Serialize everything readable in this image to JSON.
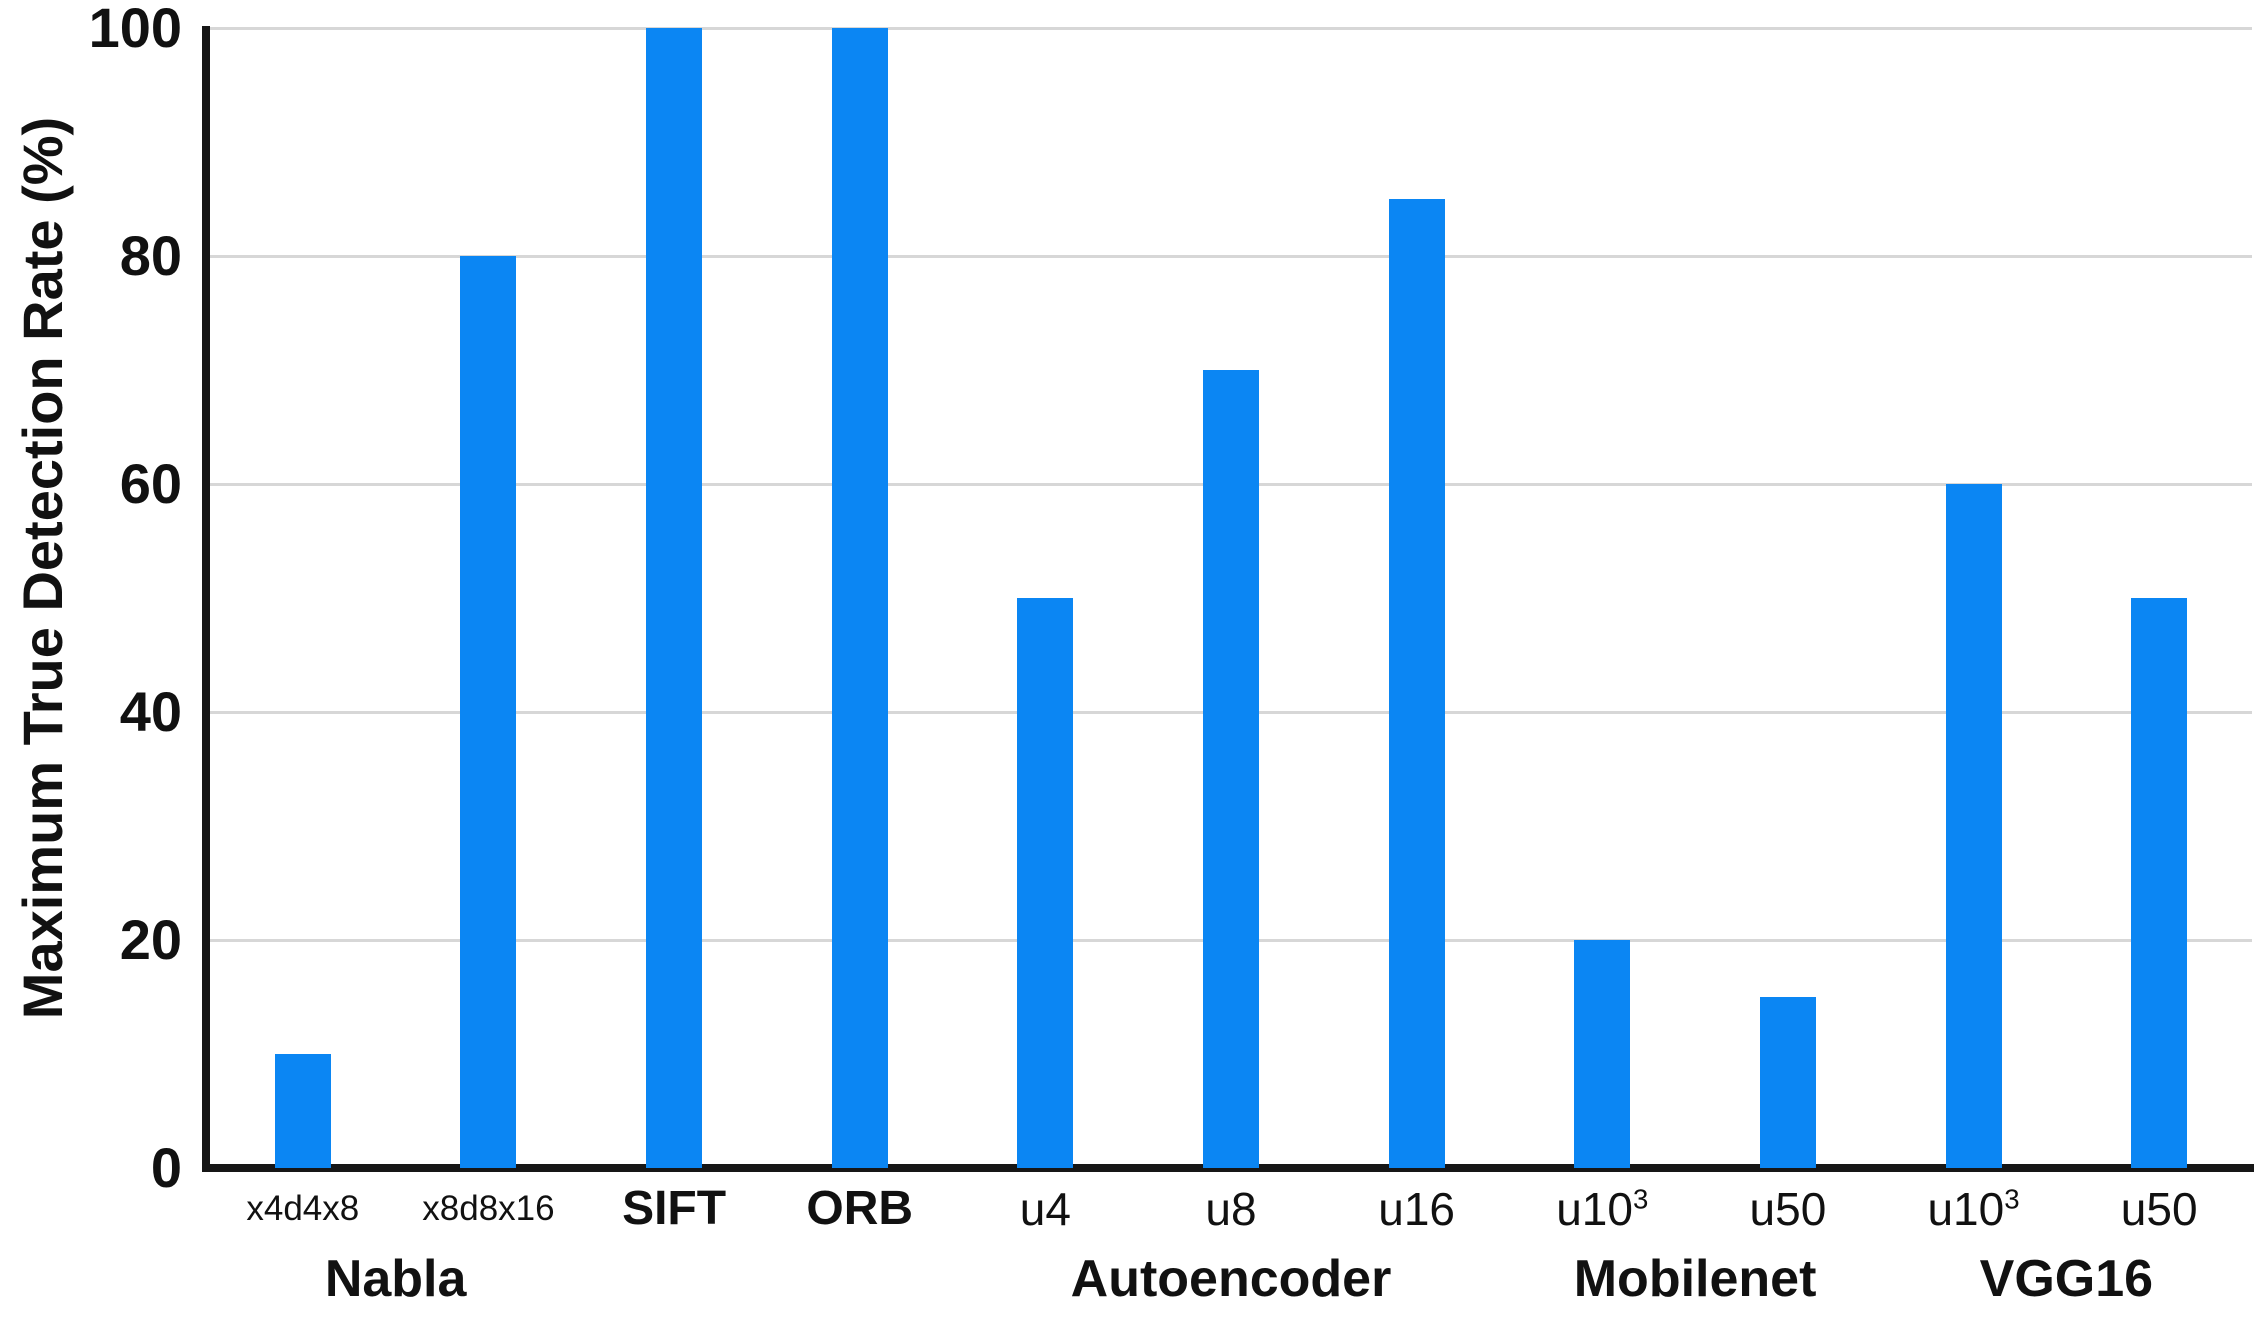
{
  "chart_data": {
    "type": "bar",
    "title": "",
    "xlabel": "",
    "ylabel": "Maximum True Detection Rate (%)",
    "ylim": [
      0,
      100
    ],
    "yticks": [
      0,
      20,
      40,
      60,
      80,
      100
    ],
    "grid": true,
    "legend": null,
    "bar_color": "#0b86f3",
    "gridline_color": "#d7d7d7",
    "axis_color": "#161616",
    "categories": [
      "x4d4x8",
      "x8d8x16",
      "SIFT",
      "ORB",
      "u4",
      "u8",
      "u16",
      "u10³",
      "u50",
      "u10³",
      "u50"
    ],
    "values": [
      10,
      80,
      100,
      100,
      50,
      70,
      85,
      20,
      15,
      60,
      50
    ],
    "bars": [
      {
        "label": "x4d4x8",
        "sup": "",
        "value": 10,
        "bold": false,
        "small": true
      },
      {
        "label": "x8d8x16",
        "sup": "",
        "value": 80,
        "bold": false,
        "small": true
      },
      {
        "label": "SIFT",
        "sup": "",
        "value": 100,
        "bold": true,
        "small": false
      },
      {
        "label": "ORB",
        "sup": "",
        "value": 100,
        "bold": true,
        "small": false
      },
      {
        "label": "u4",
        "sup": "",
        "value": 50,
        "bold": false,
        "small": false
      },
      {
        "label": "u8",
        "sup": "",
        "value": 70,
        "bold": false,
        "small": false
      },
      {
        "label": "u16",
        "sup": "",
        "value": 85,
        "bold": false,
        "small": false
      },
      {
        "label": "u10",
        "sup": "3",
        "value": 20,
        "bold": false,
        "small": false
      },
      {
        "label": "u50",
        "sup": "",
        "value": 15,
        "bold": false,
        "small": false
      },
      {
        "label": "u10",
        "sup": "3",
        "value": 60,
        "bold": false,
        "small": false
      },
      {
        "label": "u50",
        "sup": "",
        "value": 50,
        "bold": false,
        "small": false
      }
    ],
    "groups": [
      {
        "label": "Nabla",
        "start": 0,
        "end": 1
      },
      {
        "label": "Autoencoder",
        "start": 4,
        "end": 6
      },
      {
        "label": "Mobilenet",
        "start": 7,
        "end": 8
      },
      {
        "label": "VGG16",
        "start": 9,
        "end": 10
      }
    ]
  }
}
